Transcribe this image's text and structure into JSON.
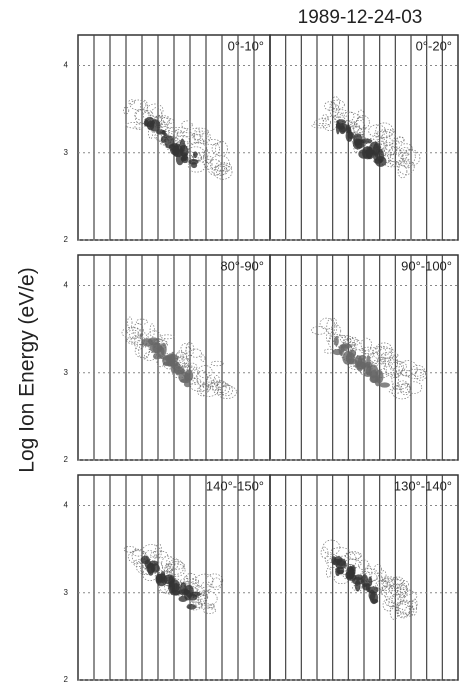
{
  "title": "1989-12-24-03",
  "y_label": "Log Ion Energy (eV/e)",
  "ylim": [
    2,
    4.35
  ],
  "yticks": [
    2,
    3,
    4
  ],
  "panels": [
    {
      "label": "0°-10°"
    },
    {
      "label": "0°-20°"
    },
    {
      "label": "80°-90°"
    },
    {
      "label": "90°-100°"
    },
    {
      "label": "140°-150°"
    },
    {
      "label": "130°-140°"
    }
  ]
}
